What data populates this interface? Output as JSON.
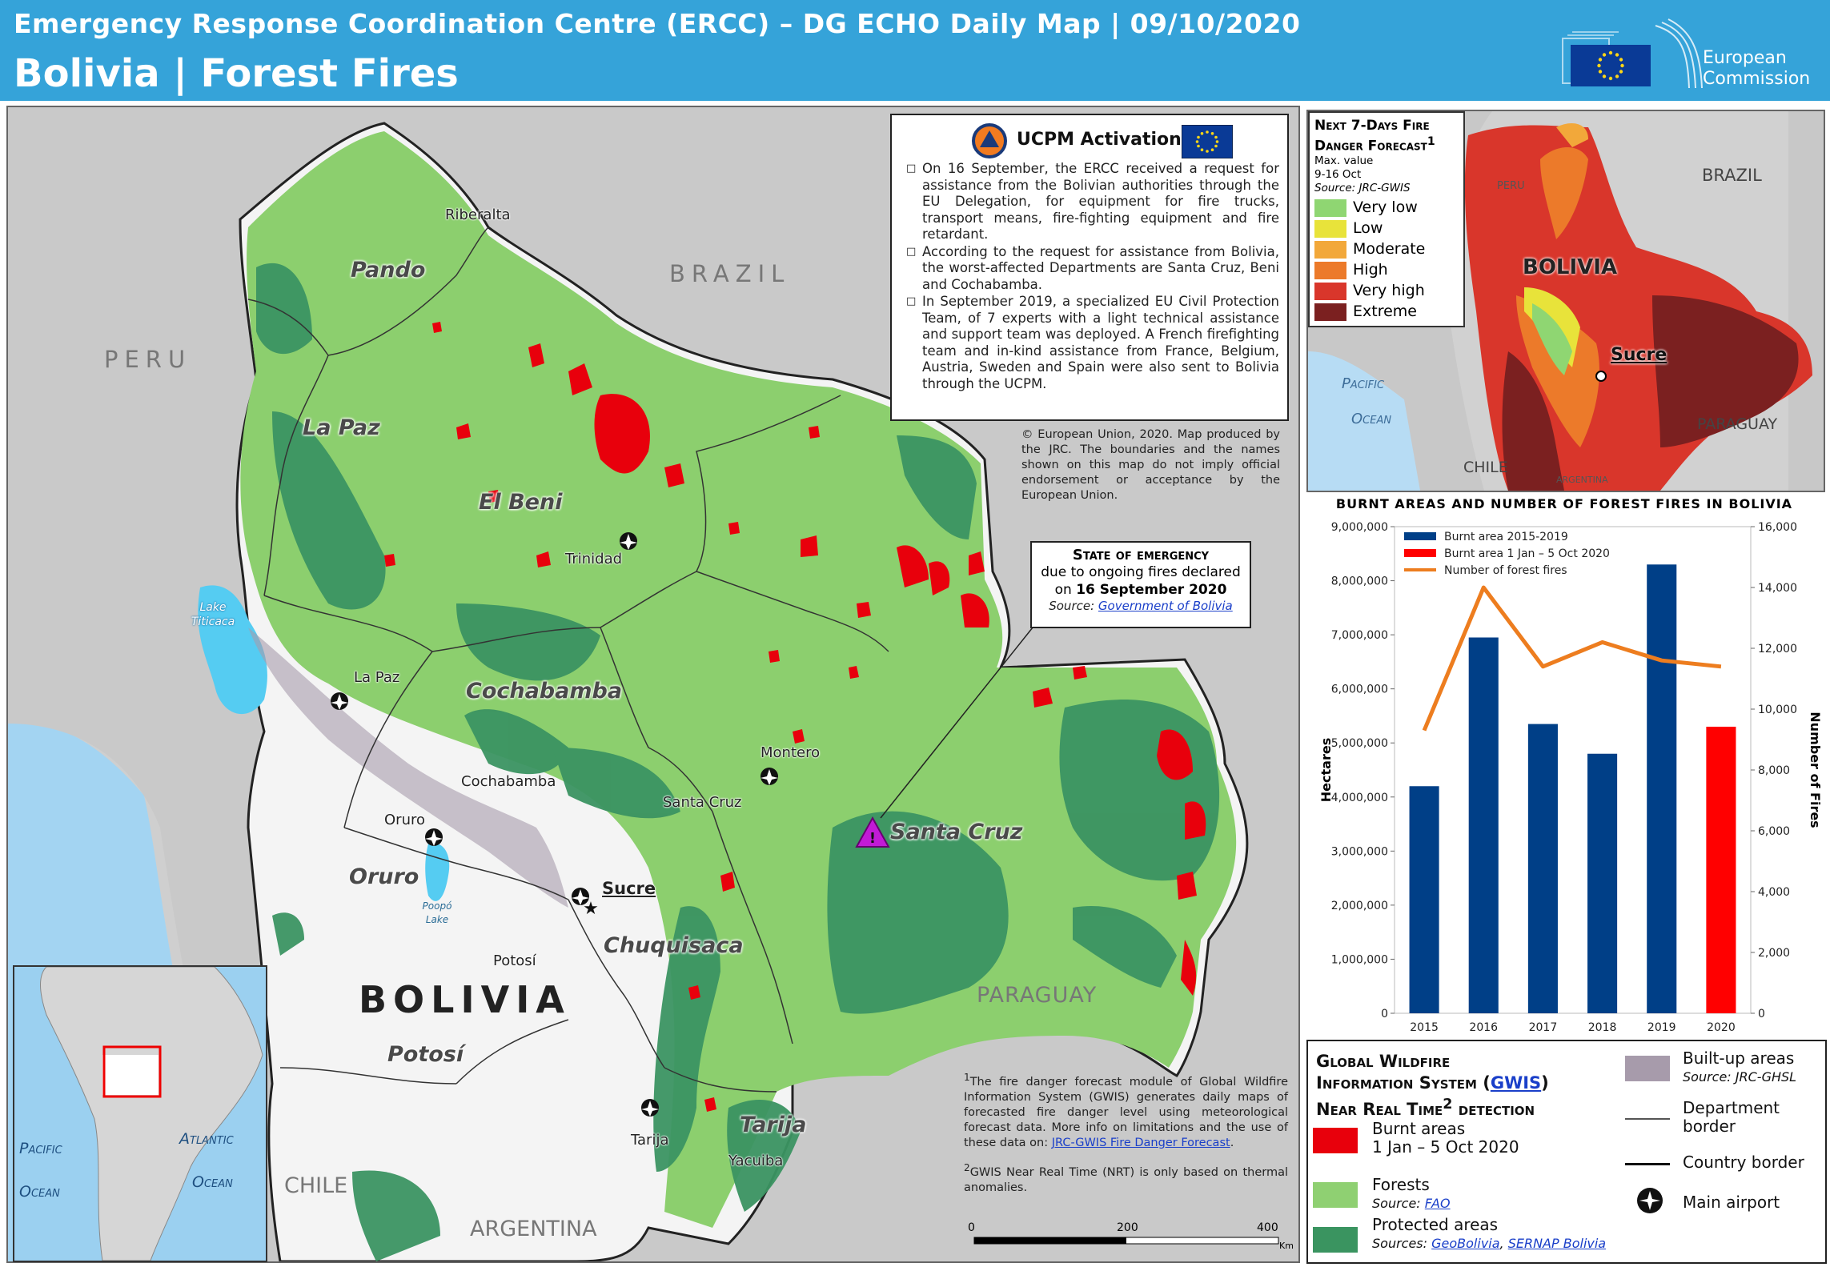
{
  "header": {
    "top_line": "Emergency Response Coordination Centre (ERCC) – DG ECHO Daily  Map | 09/10/2020",
    "title": "Bolivia | Forest Fires",
    "logo_text_1": "European",
    "logo_text_2": "Commission"
  },
  "map": {
    "countries": {
      "brazil": "BRAZIL",
      "peru": "PERU",
      "paraguay": "PARAGUAY",
      "chile": "CHILE",
      "argentina": "ARGENTINA",
      "bolivia": "BOLIVIA"
    },
    "departments": [
      "Pando",
      "La Paz",
      "El Beni",
      "Cochabamba",
      "Oruro",
      "Chuquisaca",
      "Potosí",
      "Tarija",
      "Santa Cruz"
    ],
    "cities": [
      "Riberalta",
      "Trinidad",
      "La Paz",
      "Cochabamba",
      "Oruro",
      "Sucre",
      "Potosí",
      "Montero",
      "Santa Cruz",
      "Tarija",
      "Yacuiba"
    ],
    "lake_titicaca": "Lake Titicaca",
    "lake_poopo": "Poopó Lake",
    "scale": {
      "zero": "0",
      "mid": "200",
      "max": "400",
      "unit": "Km"
    }
  },
  "ucpm": {
    "title": "UCPM Activation",
    "items": [
      "On 16 September, the ERCC received a request for assistance from the Bolivian authorities through the EU Delegation, for equipment for fire trucks, transport means, fire-fighting equipment and fire retardant.",
      "According to the request for assistance from Bolivia, the worst-affected Departments are Santa Cruz, Beni and Cochabamba.",
      "In September 2019, a specialized EU Civil Protection Team, of 7 experts with a light technical assistance and support team was deployed. A French firefighting team and in-kind assistance from France, Belgium, Austria, Sweden and Spain were also  sent to Bolivia through the UCPM."
    ]
  },
  "copyright": "© European Union, 2020. Map produced by the JRC. The boundaries and the names shown on this map do not imply official endorsement or acceptance by the European Union.",
  "state_of_emergency": {
    "title": "State of emergency",
    "line2": "due to ongoing fires declared",
    "line3_prefix": "on ",
    "line3_date": "16 September 2020",
    "source_label": "Source: ",
    "source_link": "Government  of Bolivia"
  },
  "footnotes": {
    "f1_mark": "1",
    "f1": "The fire danger forecast module of Global Wildfire Information System (GWIS) generates daily maps of forecasted fire danger level using meteorological forecast data. More info on limitations and the use of these data on: ",
    "f1_link": "JRC-GWIS Fire Danger  Forecast",
    "f2_mark": "2",
    "f2": "GWIS Near Real Time (NRT) is only based on thermal anomalies."
  },
  "inset": {
    "pacific_1": "Pacific",
    "pacific_2": "Ocean",
    "atlantic_1": "Atlantic",
    "atlantic_2": "Ocean"
  },
  "forecast": {
    "title_1": "Next 7-Days Fire",
    "title_2": "Danger Forecast",
    "title_sup": "1",
    "sub_1": "Max. value",
    "sub_2": "9-16  Oct",
    "source": "Source: JRC-GWIS",
    "levels": [
      {
        "label": "Very low",
        "color": "#8fd672"
      },
      {
        "label": "Low",
        "color": "#e8e33a"
      },
      {
        "label": "Moderate",
        "color": "#f2a83a"
      },
      {
        "label": "High",
        "color": "#ec7a2a"
      },
      {
        "label": "Very high",
        "color": "#d9362b"
      },
      {
        "label": "Extreme",
        "color": "#7b2020"
      }
    ],
    "map_labels": {
      "brazil": "BRAZIL",
      "peru": "PERU",
      "bolivia": "BOLIVIA",
      "sucre": "Sucre",
      "pacific": "Pacific",
      "ocean": "Ocean",
      "paraguay": "PARAGUAY",
      "chile": "CHILE",
      "argentina": "ARGENTINA"
    }
  },
  "chart_data": {
    "type": "bar",
    "title": "BURNT AREAS AND NUMBER OF FOREST FIRES IN BOLIVIA",
    "categories": [
      "2015",
      "2016",
      "2017",
      "2018",
      "2019",
      "2020"
    ],
    "series": [
      {
        "name": "Burnt area 2015-2019",
        "type": "bar",
        "axis": "left",
        "color": "#003f87",
        "values": [
          4200000,
          6950000,
          5350000,
          4800000,
          8300000,
          null
        ]
      },
      {
        "name": "Burnt area 1 Jan – 5 Oct 2020",
        "type": "bar",
        "axis": "left",
        "color": "#ff0000",
        "values": [
          null,
          null,
          null,
          null,
          null,
          5300000
        ]
      },
      {
        "name": "Number of forest fires",
        "type": "line",
        "axis": "right",
        "color": "#ed7d1f",
        "values": [
          9300,
          14000,
          11400,
          12200,
          11600,
          11400
        ]
      }
    ],
    "ylabel": "Hectares",
    "y2label": "Number of Fires",
    "ylim": [
      0,
      9000000
    ],
    "y2lim": [
      0,
      16000
    ],
    "yticks": [
      "0",
      "1,000,000",
      "2,000,000",
      "3,000,000",
      "4,000,000",
      "5,000,000",
      "6,000,000",
      "7,000,000",
      "8,000,000",
      "9,000,000"
    ],
    "y2ticks": [
      "0",
      "2,000",
      "4,000",
      "6,000",
      "8,000",
      "10,000",
      "12,000",
      "14,000",
      "16,000"
    ],
    "legend": "top-left"
  },
  "legend": {
    "title_1": "Global Wildfire",
    "title_2a": "Information System (",
    "title_2_link": "GWIS",
    "title_2b": ")",
    "title_3a": "Near Real Time",
    "title_3_sup": "2",
    "title_3b": " detection",
    "burnt": "Burnt areas",
    "burnt_2": "1 Jan – 5 Oct 2020",
    "forests": "Forests",
    "forests_src_label": "Source: ",
    "forests_src": "FAO",
    "protected": "Protected areas",
    "protected_src_label": "Sources: ",
    "protected_src_1": "GeoBolivia",
    "protected_src_sep": ", ",
    "protected_src_2": "SERNAP Bolivia",
    "builtup": "Built-up areas",
    "builtup_src": "Source: JRC-GHSL",
    "dept_border_1": "Department",
    "dept_border_2": "border",
    "country_border": "Country border",
    "airport": "Main airport",
    "colors": {
      "burnt": "#e8000c",
      "forest": "#8fd072",
      "protected": "#3a9460",
      "builtup": "#a79bab"
    }
  }
}
